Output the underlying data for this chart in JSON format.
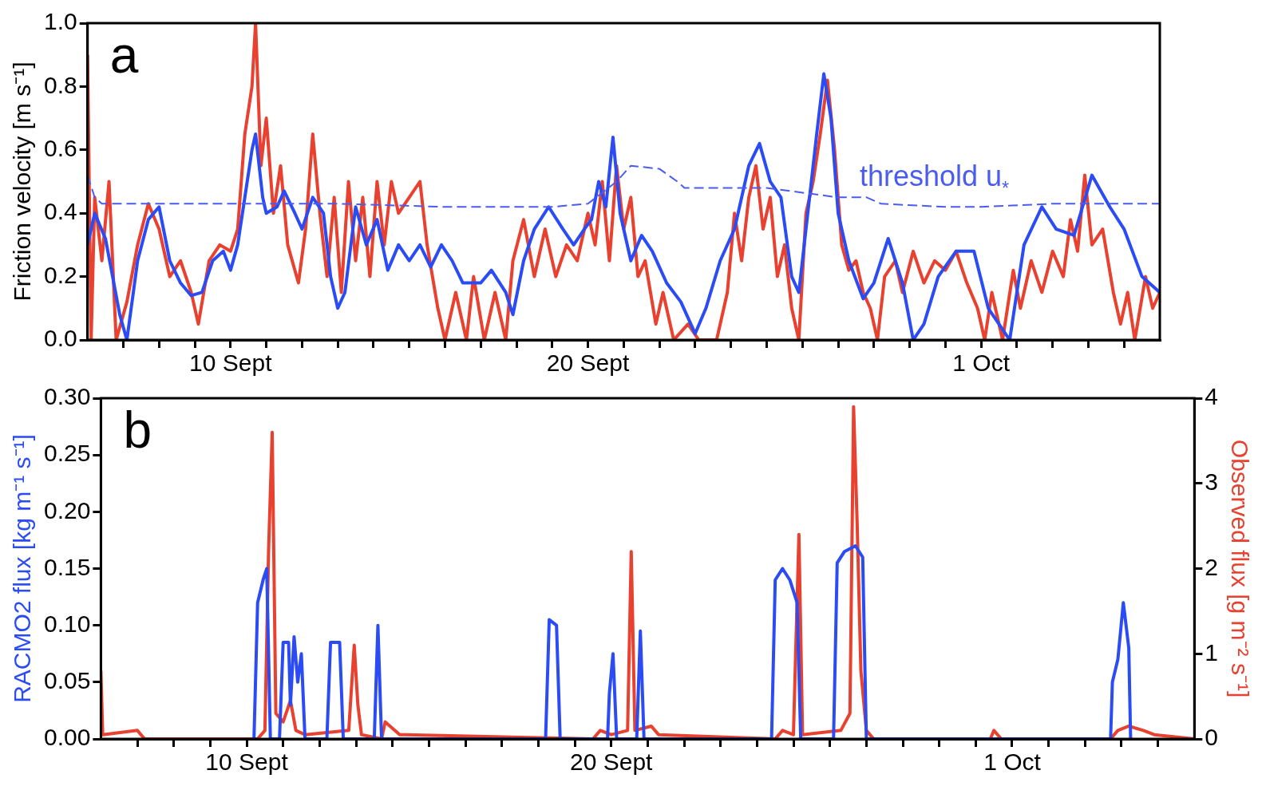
{
  "chart_data": [
    {
      "type": "line",
      "ylabel": "Friction velocity [m s⁻¹]",
      "xlim": [
        "--09-06T00:00",
        "--10-06T00:00"
      ],
      "ylim": [
        0,
        1.0
      ],
      "yticks": [
        {
          "value": 0,
          "label": "0.0"
        },
        0.2,
        0.4,
        0.6,
        0.8,
        {
          "value": 1,
          "label": "1.0"
        }
      ],
      "xticks": [
        {
          "value": "--09-07T00:00",
          "label": null
        },
        {
          "value": "--09-08T00:00",
          "label": null
        },
        {
          "value": "--09-09T00:00",
          "label": null
        },
        {
          "value": "--09-10T00:00",
          "label": "10 Sept"
        },
        {
          "value": "--09-11T00:00",
          "label": null
        },
        {
          "value": "--09-12T00:00",
          "label": null
        },
        {
          "value": "--09-13T00:00",
          "label": null
        },
        {
          "value": "--09-14T00:00",
          "label": null
        },
        {
          "value": "--09-15T00:00",
          "label": null
        },
        {
          "value": "--09-16T00:00",
          "label": null
        },
        {
          "value": "--09-17T00:00",
          "label": null
        },
        {
          "value": "--09-18T00:00",
          "label": null
        },
        {
          "value": "--09-19T00:00",
          "label": null
        },
        {
          "value": "--09-20T00:00",
          "label": "20 Sept"
        },
        {
          "value": "--09-21T00:00",
          "label": null
        },
        {
          "value": "--09-22T00:00",
          "label": null
        },
        {
          "value": "--09-23T00:00",
          "label": null
        },
        {
          "value": "--09-24T00:00",
          "label": null
        },
        {
          "value": "--09-25T00:00",
          "label": null
        },
        {
          "value": "--09-26T00:00",
          "label": null
        },
        {
          "value": "--09-27T00:00",
          "label": null
        },
        {
          "value": "--09-28T00:00",
          "label": null
        },
        {
          "value": "--09-29T00:00",
          "label": null
        },
        {
          "value": "--09-30T00:00",
          "label": null
        },
        {
          "value": "--10-01T00:00",
          "label": "1 Oct"
        },
        {
          "value": "--10-02T00:00",
          "label": null
        },
        {
          "value": "--10-03T00:00",
          "label": null
        },
        {
          "value": "--10-04T00:00",
          "label": null
        },
        {
          "value": "--10-05T00:00",
          "label": null
        }
      ],
      "grid": false,
      "legend": false,
      "marker": "none",
      "annotations": [
        "a"
      ],
      "series": [
        {
          "color": "#2b4cf5",
          "x": [
            "--09-06T00:00",
            "--09-06T04:48",
            "--09-06T12:00",
            "--09-06T21:36",
            "--09-07T02:24",
            "--09-07T09:36",
            "--09-07T16:48",
            "--09-08T00:00",
            "--09-08T07:12",
            "--09-08T14:24",
            "--09-08T21:36",
            "--09-09T04:48",
            "--09-09T12:00",
            "--09-09T19:12",
            "--09-10T00:00",
            "--09-10T04:48",
            "--09-10T09:36",
            "--09-10T14:24",
            "--09-10T16:48",
            "--09-10T21:36",
            "--09-11T00:00",
            "--09-11T07:12",
            "--09-11T12:00",
            "--09-11T19:12",
            "--09-12T00:00",
            "--09-12T07:12",
            "--09-12T14:24",
            "--09-12T19:12",
            "--09-13T00:00",
            "--09-13T04:48",
            "--09-13T12:00",
            "--09-13T19:12",
            "--09-14T02:24",
            "--09-14T09:36",
            "--09-14T16:48",
            "--09-15T00:00",
            "--09-15T07:12",
            "--09-15T14:24",
            "--09-15T21:36",
            "--09-16T04:48",
            "--09-16T12:00",
            "--09-17T00:00",
            "--09-17T07:12",
            "--09-17T16:48",
            "--09-17T21:36",
            "--09-18T04:48",
            "--09-18T12:00",
            "--09-18T21:36",
            "--09-19T07:12",
            "--09-19T14:24",
            "--09-19T21:36",
            "--09-20T02:24",
            "--09-20T07:12",
            "--09-20T12:00",
            "--09-20T16:48",
            "--09-20T21:36",
            "--09-21T04:48",
            "--09-21T12:00",
            "--09-21T19:12",
            "--09-22T04:48",
            "--09-22T14:24",
            "--09-23T00:00",
            "--09-23T07:12",
            "--09-23T16:48",
            "--09-24T02:24",
            "--09-24T12:00",
            "--09-24T19:12",
            "--09-25T02:24",
            "--09-25T09:36",
            "--09-25T16:48",
            "--09-25T21:36",
            "--09-26T04:48",
            "--09-26T09:36",
            "--09-26T14:24",
            "--09-26T19:12",
            "--09-27T00:00",
            "--09-27T07:12",
            "--09-27T16:48",
            "--09-28T00:00",
            "--09-28T09:36",
            "--09-28T19:12",
            "--09-29T02:24",
            "--09-29T09:36",
            "--09-29T19:12",
            "--09-30T07:12",
            "--09-30T19:12",
            "--10-01T04:48",
            "--10-01T12:00",
            "--10-01T19:12",
            "--10-02T04:48",
            "--10-02T16:48",
            "--10-03T02:24",
            "--10-03T14:24",
            "--10-04T02:24",
            "--10-04T14:24",
            "--10-05T00:00",
            "--10-05T12:00",
            "--10-06T00:00"
          ],
          "values": [
            0.3,
            0.4,
            0.32,
            0.08,
            0.0,
            0.25,
            0.38,
            0.42,
            0.25,
            0.18,
            0.14,
            0.15,
            0.25,
            0.28,
            0.22,
            0.3,
            0.45,
            0.6,
            0.65,
            0.45,
            0.4,
            0.42,
            0.47,
            0.4,
            0.35,
            0.45,
            0.4,
            0.2,
            0.1,
            0.15,
            0.42,
            0.3,
            0.38,
            0.22,
            0.3,
            0.25,
            0.3,
            0.23,
            0.3,
            0.25,
            0.18,
            0.18,
            0.22,
            0.15,
            0.08,
            0.25,
            0.35,
            0.42,
            0.35,
            0.3,
            0.35,
            0.38,
            0.5,
            0.42,
            0.64,
            0.4,
            0.25,
            0.33,
            0.28,
            0.18,
            0.12,
            0.02,
            0.1,
            0.25,
            0.35,
            0.55,
            0.62,
            0.5,
            0.45,
            0.2,
            0.15,
            0.45,
            0.65,
            0.84,
            0.7,
            0.4,
            0.25,
            0.13,
            0.18,
            0.32,
            0.18,
            0.0,
            0.05,
            0.2,
            0.28,
            0.28,
            0.1,
            0.05,
            0.0,
            0.3,
            0.42,
            0.35,
            0.33,
            0.52,
            0.42,
            0.35,
            0.2,
            0.15
          ]
        },
        {
          "color": "#e8412f",
          "x": [
            "--09-06T00:00",
            "--09-06T02:24",
            "--09-06T04:48",
            "--09-06T09:36",
            "--09-06T14:24",
            "--09-06T19:12",
            "--09-07T02:24",
            "--09-07T09:36",
            "--09-07T16:48",
            "--09-08T00:00",
            "--09-08T07:12",
            "--09-08T14:24",
            "--09-08T21:36",
            "--09-09T02:24",
            "--09-09T09:36",
            "--09-09T16:48",
            "--09-10T00:00",
            "--09-10T04:48",
            "--09-10T09:36",
            "--09-10T14:24",
            "--09-10T16:48",
            "--09-10T20:24",
            "--09-11T00:00",
            "--09-11T04:48",
            "--09-11T09:36",
            "--09-11T14:24",
            "--09-11T21:36",
            "--09-12T02:24",
            "--09-12T07:12",
            "--09-12T12:00",
            "--09-12T16:48",
            "--09-12T21:36",
            "--09-13T02:24",
            "--09-13T07:12",
            "--09-13T12:00",
            "--09-13T16:48",
            "--09-13T21:36",
            "--09-14T02:24",
            "--09-14T07:12",
            "--09-14T12:00",
            "--09-14T16:48",
            "--09-15T00:00",
            "--09-15T07:12",
            "--09-15T12:00",
            "--09-15T19:12",
            "--09-16T00:00",
            "--09-16T07:12",
            "--09-16T14:24",
            "--09-16T19:12",
            "--09-17T02:24",
            "--09-17T09:36",
            "--09-17T16:48",
            "--09-17T21:36",
            "--09-18T04:48",
            "--09-18T12:00",
            "--09-18T19:12",
            "--09-19T02:24",
            "--09-19T09:36",
            "--09-19T16:48",
            "--09-20T00:00",
            "--09-20T04:48",
            "--09-20T09:36",
            "--09-20T14:24",
            "--09-20T19:12",
            "--09-21T00:00",
            "--09-21T04:48",
            "--09-21T09:36",
            "--09-21T14:24",
            "--09-21T21:36",
            "--09-22T02:24",
            "--09-22T09:36",
            "--09-22T19:12",
            "--09-23T02:24",
            "--09-23T14:24",
            "--09-23T21:36",
            "--09-24T02:24",
            "--09-24T07:12",
            "--09-24T12:00",
            "--09-24T16:48",
            "--09-24T21:36",
            "--09-25T02:24",
            "--09-25T07:12",
            "--09-25T12:00",
            "--09-25T16:48",
            "--09-25T21:36",
            "--09-26T02:24",
            "--09-26T07:12",
            "--09-26T12:00",
            "--09-26T16:48",
            "--09-26T21:36",
            "--09-27T02:24",
            "--09-27T07:12",
            "--09-27T12:00",
            "--09-27T16:48",
            "--09-27T21:36",
            "--09-28T02:24",
            "--09-28T07:12",
            "--09-28T14:24",
            "--09-28T19:12",
            "--09-29T02:24",
            "--09-29T09:36",
            "--09-29T16:48",
            "--09-30T00:00",
            "--09-30T07:12",
            "--09-30T14:24",
            "--09-30T21:36",
            "--10-01T02:24",
            "--10-01T07:12",
            "--10-01T14:24",
            "--10-01T21:36",
            "--10-02T02:24",
            "--10-02T09:36",
            "--10-02T16:48",
            "--10-03T00:00",
            "--10-03T07:12",
            "--10-03T12:00",
            "--10-03T16:48",
            "--10-03T21:36",
            "--10-04T02:24",
            "--10-04T09:36",
            "--10-04T16:48",
            "--10-04T21:36",
            "--10-05T02:24",
            "--10-05T07:12",
            "--10-05T14:24",
            "--10-05T19:12",
            "--10-06T00:00"
          ],
          "values": [
            0.9,
            0.0,
            0.45,
            0.25,
            0.5,
            0.0,
            0.12,
            0.3,
            0.43,
            0.35,
            0.2,
            0.25,
            0.15,
            0.05,
            0.25,
            0.3,
            0.28,
            0.35,
            0.65,
            0.8,
            1.0,
            0.55,
            0.7,
            0.4,
            0.55,
            0.3,
            0.18,
            0.35,
            0.65,
            0.4,
            0.2,
            0.45,
            0.15,
            0.5,
            0.25,
            0.45,
            0.2,
            0.5,
            0.3,
            0.5,
            0.4,
            0.45,
            0.5,
            0.3,
            0.1,
            0.0,
            0.15,
            0.0,
            0.2,
            0.0,
            0.15,
            0.0,
            0.25,
            0.38,
            0.2,
            0.35,
            0.2,
            0.3,
            0.25,
            0.4,
            0.3,
            0.5,
            0.25,
            0.55,
            0.35,
            0.45,
            0.2,
            0.25,
            0.05,
            0.15,
            0.0,
            0.05,
            0.0,
            0.0,
            0.15,
            0.4,
            0.25,
            0.45,
            0.55,
            0.35,
            0.45,
            0.2,
            0.3,
            0.1,
            0.0,
            0.4,
            0.5,
            0.65,
            0.82,
            0.6,
            0.3,
            0.22,
            0.25,
            0.15,
            0.1,
            0.0,
            0.2,
            0.25,
            0.15,
            0.28,
            0.18,
            0.25,
            0.22,
            0.28,
            0.18,
            0.1,
            0.0,
            0.15,
            0.0,
            0.22,
            0.1,
            0.25,
            0.15,
            0.28,
            0.2,
            0.38,
            0.28,
            0.52,
            0.3,
            0.35,
            0.15,
            0.05,
            0.15,
            0.0,
            0.2,
            0.1,
            0.15
          ]
        },
        {
          "name": "threshold u$_{*}$",
          "color": "#4a5cf0",
          "line_style": "dashed",
          "x": [
            "--09-06T00:00",
            "--09-06T04:48",
            "--09-06T09:36",
            "--09-10T00:00",
            "--09-13T00:00",
            "--09-16T00:00",
            "--09-19T00:00",
            "--09-20T00:00",
            "--09-20T19:12",
            "--09-21T04:48",
            "--09-22T00:00",
            "--09-22T12:00",
            "--09-22T16:48",
            "--09-25T00:00",
            "--09-27T00:00",
            "--09-27T19:12",
            "--09-28T04:48",
            "--09-30T00:00",
            "--10-01T00:00",
            "--10-03T00:00",
            "--10-06T00:00"
          ],
          "values": [
            0.52,
            0.45,
            0.43,
            0.43,
            0.43,
            0.42,
            0.42,
            0.43,
            0.5,
            0.55,
            0.54,
            0.5,
            0.48,
            0.48,
            0.45,
            0.45,
            0.43,
            0.42,
            0.42,
            0.43,
            0.43
          ]
        }
      ]
    },
    {
      "type": "line",
      "ylabel": "RACMO2 flux [kg m⁻¹ s⁻¹]",
      "y2label": "Observed flux [g m⁻² s⁻¹]",
      "xlim": [
        "--09-06T00:00",
        "--10-06T00:00"
      ],
      "ylim": [
        0,
        0.3
      ],
      "yticks": [
        {
          "value": 0,
          "label": "0.00"
        },
        {
          "value": 0.05,
          "label": "0.05"
        },
        {
          "value": 0.1,
          "label": "0.10"
        },
        {
          "value": 0.15,
          "label": "0.15"
        },
        {
          "value": 0.2,
          "label": "0.20"
        },
        {
          "value": 0.25,
          "label": "0.25"
        },
        {
          "value": 0.3,
          "label": "0.30"
        }
      ],
      "y2lim": [
        0,
        4
      ],
      "y2ticks": [
        0,
        1,
        2,
        3,
        4
      ],
      "xticks": [
        {
          "value": "--09-07T00:00",
          "label": null
        },
        {
          "value": "--09-08T00:00",
          "label": null
        },
        {
          "value": "--09-09T00:00",
          "label": null
        },
        {
          "value": "--09-10T00:00",
          "label": "10 Sept"
        },
        {
          "value": "--09-11T00:00",
          "label": null
        },
        {
          "value": "--09-12T00:00",
          "label": null
        },
        {
          "value": "--09-13T00:00",
          "label": null
        },
        {
          "value": "--09-14T00:00",
          "label": null
        },
        {
          "value": "--09-15T00:00",
          "label": null
        },
        {
          "value": "--09-16T00:00",
          "label": null
        },
        {
          "value": "--09-17T00:00",
          "label": null
        },
        {
          "value": "--09-18T00:00",
          "label": null
        },
        {
          "value": "--09-19T00:00",
          "label": null
        },
        {
          "value": "--09-20T00:00",
          "label": "20 Sept"
        },
        {
          "value": "--09-21T00:00",
          "label": null
        },
        {
          "value": "--09-22T00:00",
          "label": null
        },
        {
          "value": "--09-23T00:00",
          "label": null
        },
        {
          "value": "--09-24T00:00",
          "label": null
        },
        {
          "value": "--09-25T00:00",
          "label": null
        },
        {
          "value": "--09-26T00:00",
          "label": null
        },
        {
          "value": "--09-27T00:00",
          "label": null
        },
        {
          "value": "--09-28T00:00",
          "label": null
        },
        {
          "value": "--09-29T00:00",
          "label": null
        },
        {
          "value": "--09-30T00:00",
          "label": null
        },
        {
          "value": "--10-01T00:00",
          "label": "1 Oct"
        },
        {
          "value": "--10-02T00:00",
          "label": null
        },
        {
          "value": "--10-03T00:00",
          "label": null
        },
        {
          "value": "--10-04T00:00",
          "label": null
        },
        {
          "value": "--10-05T00:00",
          "label": null
        }
      ],
      "grid": false,
      "legend": false,
      "marker": "none",
      "annotations": [
        "b"
      ],
      "series": [
        {
          "color": "#2b4cf5",
          "x": [
            "--09-10T04:48",
            "--09-10T07:12",
            "--09-10T10:48",
            "--09-10T13:12",
            "--09-10T15:36",
            "--09-10T21:36",
            "--09-11T00:00",
            "--09-11T03:36",
            "--09-11T04:48",
            "--09-11T07:12",
            "--09-11T09:36",
            "--09-11T12:00",
            "--09-11T14:24",
            "--09-12T04:48",
            "--09-12T07:12",
            "--09-12T13:12",
            "--09-12T15:36",
            "--09-13T12:00",
            "--09-13T14:24",
            "--09-13T16:48",
            "--09-18T04:48",
            "--09-18T07:12",
            "--09-18T12:00",
            "--09-18T14:24",
            "--09-19T21:36",
            "--09-19T22:48",
            "--09-20T01:12",
            "--09-20T03:36",
            "--09-20T16:48",
            "--09-20T19:12",
            "--09-20T21:36",
            "--09-24T09:36",
            "--09-24T12:00",
            "--09-24T16:48",
            "--09-24T21:36",
            "--09-25T02:24",
            "--09-25T04:48",
            "--09-26T02:24",
            "--09-26T04:48",
            "--09-26T09:36",
            "--09-26T16:48",
            "--09-26T21:36",
            "--09-27T00:00",
            "--10-03T16:48",
            "--10-03T18:00",
            "--10-03T21:36",
            "--10-04T01:12",
            "--10-04T04:48",
            "--10-04T06:00"
          ],
          "values": [
            0,
            0.12,
            0.14,
            0.15,
            0,
            0,
            0.085,
            0.085,
            0.03,
            0.09,
            0.05,
            0.075,
            0,
            0,
            0.085,
            0.085,
            0,
            0,
            0.1,
            0,
            0,
            0.105,
            0.1,
            0,
            0,
            0.04,
            0.075,
            0,
            0,
            0.095,
            0,
            0,
            0.14,
            0.15,
            0.14,
            0.12,
            0,
            0,
            0.155,
            0.165,
            0.17,
            0.16,
            0,
            0,
            0.05,
            0.07,
            0.12,
            0.08,
            0
          ]
        },
        {
          "color": "#e8412f",
          "axis": "y2",
          "x": [
            "--09-06T00:00",
            "--09-06T01:12",
            "--09-07T00:00",
            "--09-07T04:48",
            "--09-10T07:12",
            "--09-10T12:00",
            "--09-10T14:24",
            "--09-10T16:48",
            "--09-10T19:12",
            "--09-11T00:00",
            "--09-11T04:48",
            "--09-11T08:24",
            "--09-11T14:24",
            "--09-12T19:12",
            "--09-12T22:48",
            "--09-13T01:12",
            "--09-13T03:36",
            "--09-13T16:48",
            "--09-13T19:12",
            "--09-14T04:48",
            "--09-19T12:00",
            "--09-19T16:48",
            "--09-20T00:00",
            "--09-20T10:48",
            "--09-20T13:12",
            "--09-20T15:36",
            "--09-21T02:24",
            "--09-21T07:12",
            "--09-24T12:00",
            "--09-24T16:48",
            "--09-25T00:00",
            "--09-25T03:36",
            "--09-25T06:00",
            "--09-26T07:12",
            "--09-26T13:12",
            "--09-26T15:36",
            "--09-26T18:00",
            "--09-26T20:24",
            "--09-27T00:00",
            "--09-27T04:48",
            "--09-30T09:36",
            "--09-30T12:00",
            "--09-30T16:48",
            "--10-03T16:48",
            "--10-03T21:36",
            "--10-04T04:48",
            "--10-04T14:24",
            "--10-04T21:36",
            "--10-06T00:00"
          ],
          "values": [
            0.8,
            0.05,
            0.1,
            0,
            0,
            0.1,
            2.2,
            3.6,
            0.3,
            0.2,
            0.45,
            0.1,
            0.05,
            0.1,
            1.1,
            0.4,
            0.05,
            0,
            0.2,
            0.05,
            0,
            0.1,
            0.05,
            0.1,
            2.2,
            0.1,
            0.15,
            0.05,
            0,
            0.1,
            0.05,
            2.4,
            0.05,
            0.1,
            0.3,
            3.9,
            2.5,
            0.8,
            0.1,
            0,
            0,
            0.1,
            0,
            0,
            0.1,
            0.15,
            0.1,
            0.05,
            0
          ]
        }
      ]
    }
  ]
}
